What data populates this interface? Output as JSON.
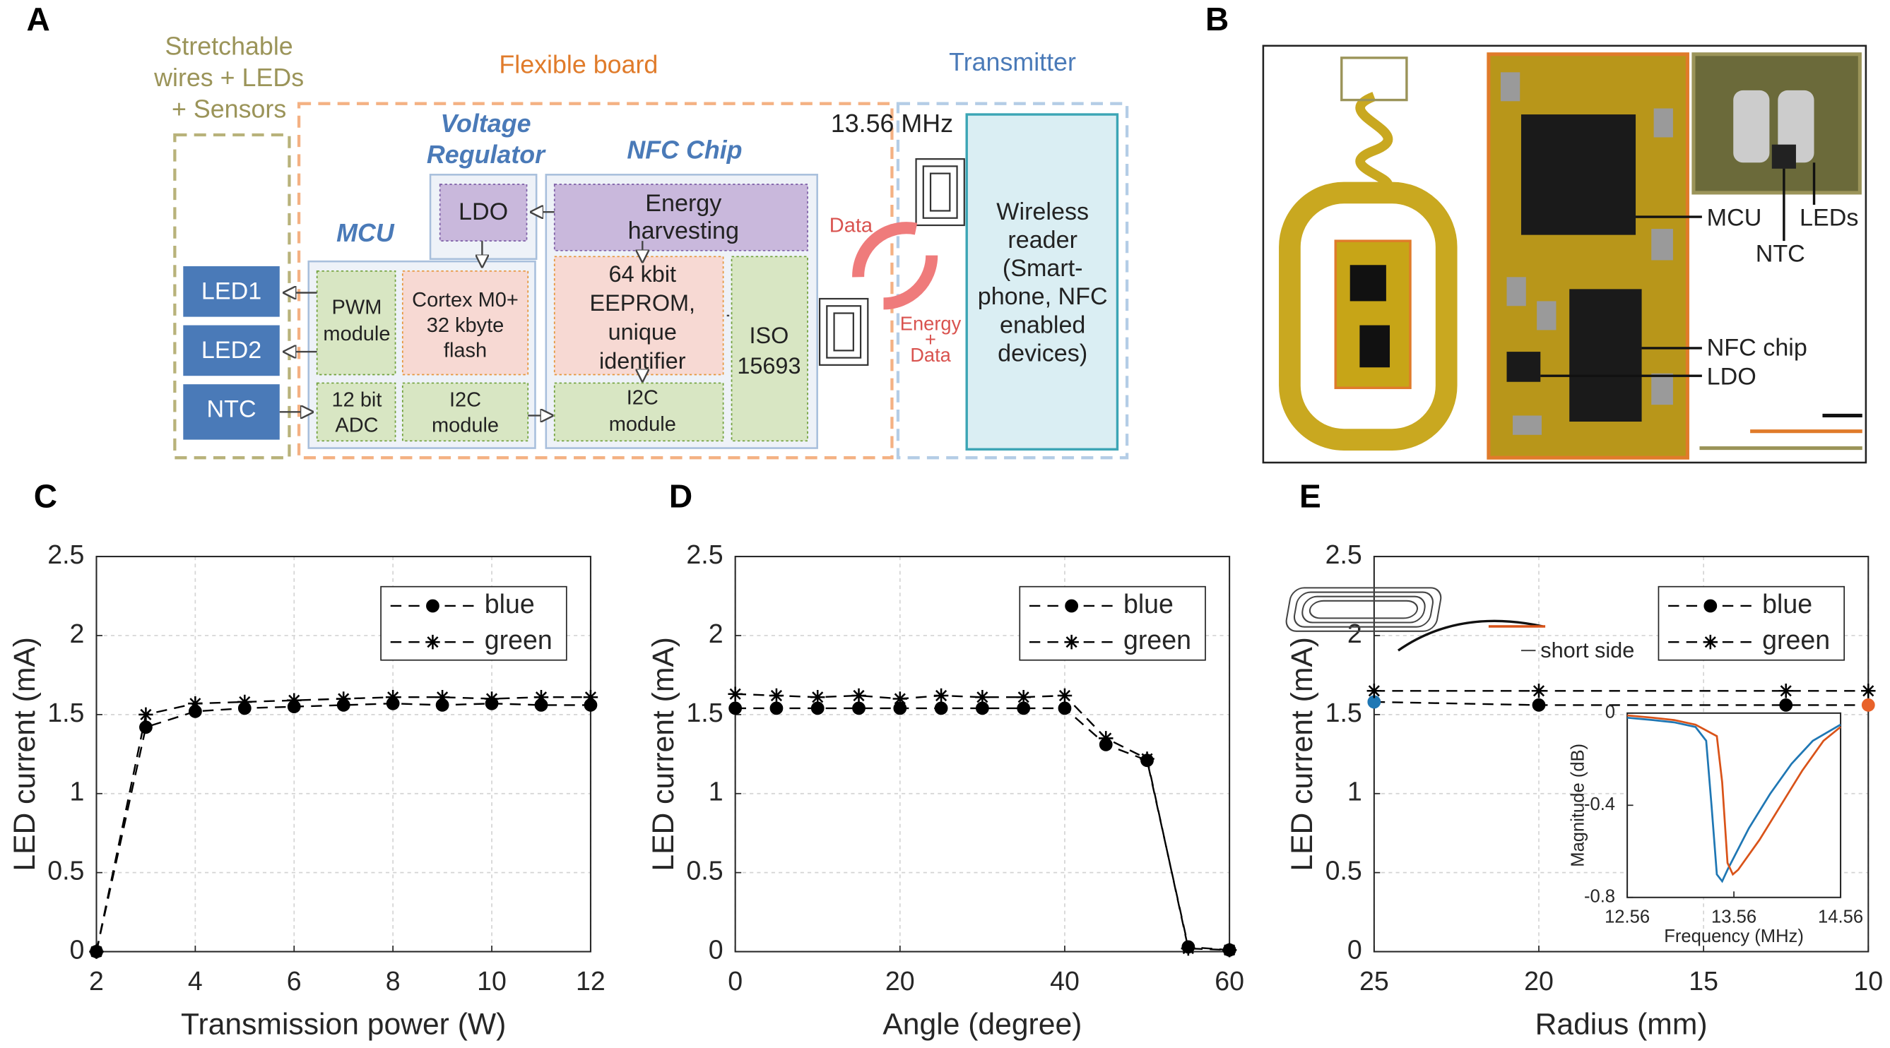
{
  "panels": [
    "A",
    "B",
    "C",
    "D",
    "E"
  ],
  "diagram": {
    "wires_label": [
      "Stretchable",
      "wires + LEDs",
      "+ Sensors"
    ],
    "board_label": "Flexible board",
    "transmitter_label": "Transmitter",
    "regulator_label": [
      "Voltage",
      "Regulator"
    ],
    "nfc_label": "NFC Chip",
    "mcu_label": "MCU",
    "ldo": "LDO",
    "harvesting": [
      "Energy",
      "harvesting"
    ],
    "eeprom": [
      "64 kbit",
      "EEPROM,",
      "unique",
      "identifier"
    ],
    "iso": [
      "ISO",
      "15693"
    ],
    "cortex": [
      "Cortex M0+",
      "32 kbyte",
      "flash"
    ],
    "pwm": [
      "PWM",
      "module"
    ],
    "adc": [
      "12 bit",
      "ADC"
    ],
    "mcu_i2c": [
      "I2C",
      "module"
    ],
    "nfc_i2c": [
      "I2C",
      "module"
    ],
    "outputs": [
      "LED1",
      "LED2",
      "NTC"
    ],
    "frequency": "13.56 MHz",
    "data_arrow": "Data",
    "energy_arrow": [
      "Energy",
      "+",
      "Data"
    ],
    "reader": [
      "Wireless",
      "reader",
      "(Smart-",
      "phone, NFC",
      "enabled",
      "devices)"
    ]
  },
  "photo": {
    "labels": [
      "MCU",
      "LEDs",
      "NTC",
      "NFC chip",
      "LDO"
    ]
  },
  "chart_data": [
    {
      "type": "line",
      "xlabel": "Transmission power (W)",
      "ylabel": "LED current (mA)",
      "x": [
        2,
        3,
        4,
        5,
        6,
        7,
        8,
        9,
        10,
        11,
        12
      ],
      "series": [
        {
          "name": "blue",
          "color": "#000000",
          "marker": "o",
          "values": [
            0,
            1.42,
            1.52,
            1.54,
            1.55,
            1.56,
            1.57,
            1.56,
            1.57,
            1.56,
            1.56
          ]
        },
        {
          "name": "green",
          "color": "#000000",
          "marker": "*",
          "values": [
            0,
            1.5,
            1.57,
            1.58,
            1.59,
            1.6,
            1.61,
            1.61,
            1.6,
            1.61,
            1.61
          ]
        }
      ],
      "xlim": [
        2,
        12
      ],
      "xticks": [
        2,
        4,
        6,
        8,
        10,
        12
      ],
      "ylim": [
        0,
        2.5
      ],
      "yticks": [
        0,
        0.5,
        1,
        1.5,
        2,
        2.5
      ],
      "grid": true,
      "legend": "upper right",
      "linestyle": "dashed"
    },
    {
      "type": "line",
      "xlabel": "Angle (degree)",
      "ylabel": "LED current (mA)",
      "x": [
        0,
        5,
        10,
        15,
        20,
        25,
        30,
        35,
        40,
        45,
        50,
        55,
        60
      ],
      "series": [
        {
          "name": "blue",
          "color": "#000000",
          "marker": "o",
          "values": [
            1.54,
            1.54,
            1.54,
            1.54,
            1.54,
            1.54,
            1.54,
            1.54,
            1.54,
            1.31,
            1.21,
            0.03,
            0.01
          ]
        },
        {
          "name": "green",
          "color": "#000000",
          "marker": "*",
          "values": [
            1.63,
            1.62,
            1.61,
            1.62,
            1.6,
            1.62,
            1.61,
            1.61,
            1.62,
            1.35,
            1.22,
            0.02,
            0.01
          ]
        }
      ],
      "xlim": [
        0,
        60
      ],
      "xticks": [
        0,
        20,
        40,
        60
      ],
      "ylim": [
        0,
        2.5
      ],
      "yticks": [
        0,
        0.5,
        1,
        1.5,
        2,
        2.5
      ],
      "grid": true,
      "legend": "upper right",
      "linestyle": "dashed"
    },
    {
      "type": "line",
      "xlabel": "Radius (mm)",
      "ylabel": "LED current (mA)",
      "x": [
        25,
        20,
        12.5,
        10
      ],
      "series": [
        {
          "name": "blue",
          "color": "#000000",
          "marker": "o",
          "marker_colors": [
            "#1f77b4",
            null,
            null,
            "#e8622a"
          ],
          "values": [
            1.58,
            1.56,
            1.56,
            1.56
          ]
        },
        {
          "name": "green",
          "color": "#000000",
          "marker": "*",
          "values": [
            1.65,
            1.65,
            1.65,
            1.65
          ]
        }
      ],
      "xlim": [
        25,
        10
      ],
      "xticks": [
        25,
        20,
        15,
        10
      ],
      "ylim": [
        0,
        2.5
      ],
      "yticks": [
        0,
        0.5,
        1,
        1.5,
        2,
        2.5
      ],
      "grid": true,
      "legend": "upper right",
      "linestyle": "dashed",
      "annotation": "short side",
      "inset": {
        "type": "line",
        "xlabel": "Frequency (MHz)",
        "ylabel": "Magnitude (dB)",
        "series": [
          {
            "color": "#1f77b4",
            "x": [
              12.56,
              12.8,
              13.0,
              13.2,
              13.3,
              13.35,
              13.4,
              13.45,
              13.5,
              13.7,
              13.9,
              14.1,
              14.3,
              14.56
            ],
            "values": [
              -0.02,
              -0.03,
              -0.04,
              -0.06,
              -0.12,
              -0.4,
              -0.7,
              -0.73,
              -0.68,
              -0.5,
              -0.35,
              -0.22,
              -0.12,
              -0.05
            ]
          },
          {
            "color": "#d95319",
            "x": [
              12.56,
              12.8,
              13.0,
              13.2,
              13.4,
              13.45,
              13.5,
              13.55,
              13.6,
              13.8,
              14.0,
              14.2,
              14.4,
              14.56
            ],
            "values": [
              -0.01,
              -0.02,
              -0.03,
              -0.05,
              -0.1,
              -0.3,
              -0.65,
              -0.7,
              -0.68,
              -0.55,
              -0.4,
              -0.25,
              -0.12,
              -0.06
            ]
          }
        ],
        "xlim": [
          12.56,
          14.56
        ],
        "xticks": [
          12.56,
          13.56,
          14.56
        ],
        "ylim": [
          -0.8,
          0
        ],
        "yticks": [
          -0.8,
          -0.4,
          0
        ]
      }
    }
  ]
}
